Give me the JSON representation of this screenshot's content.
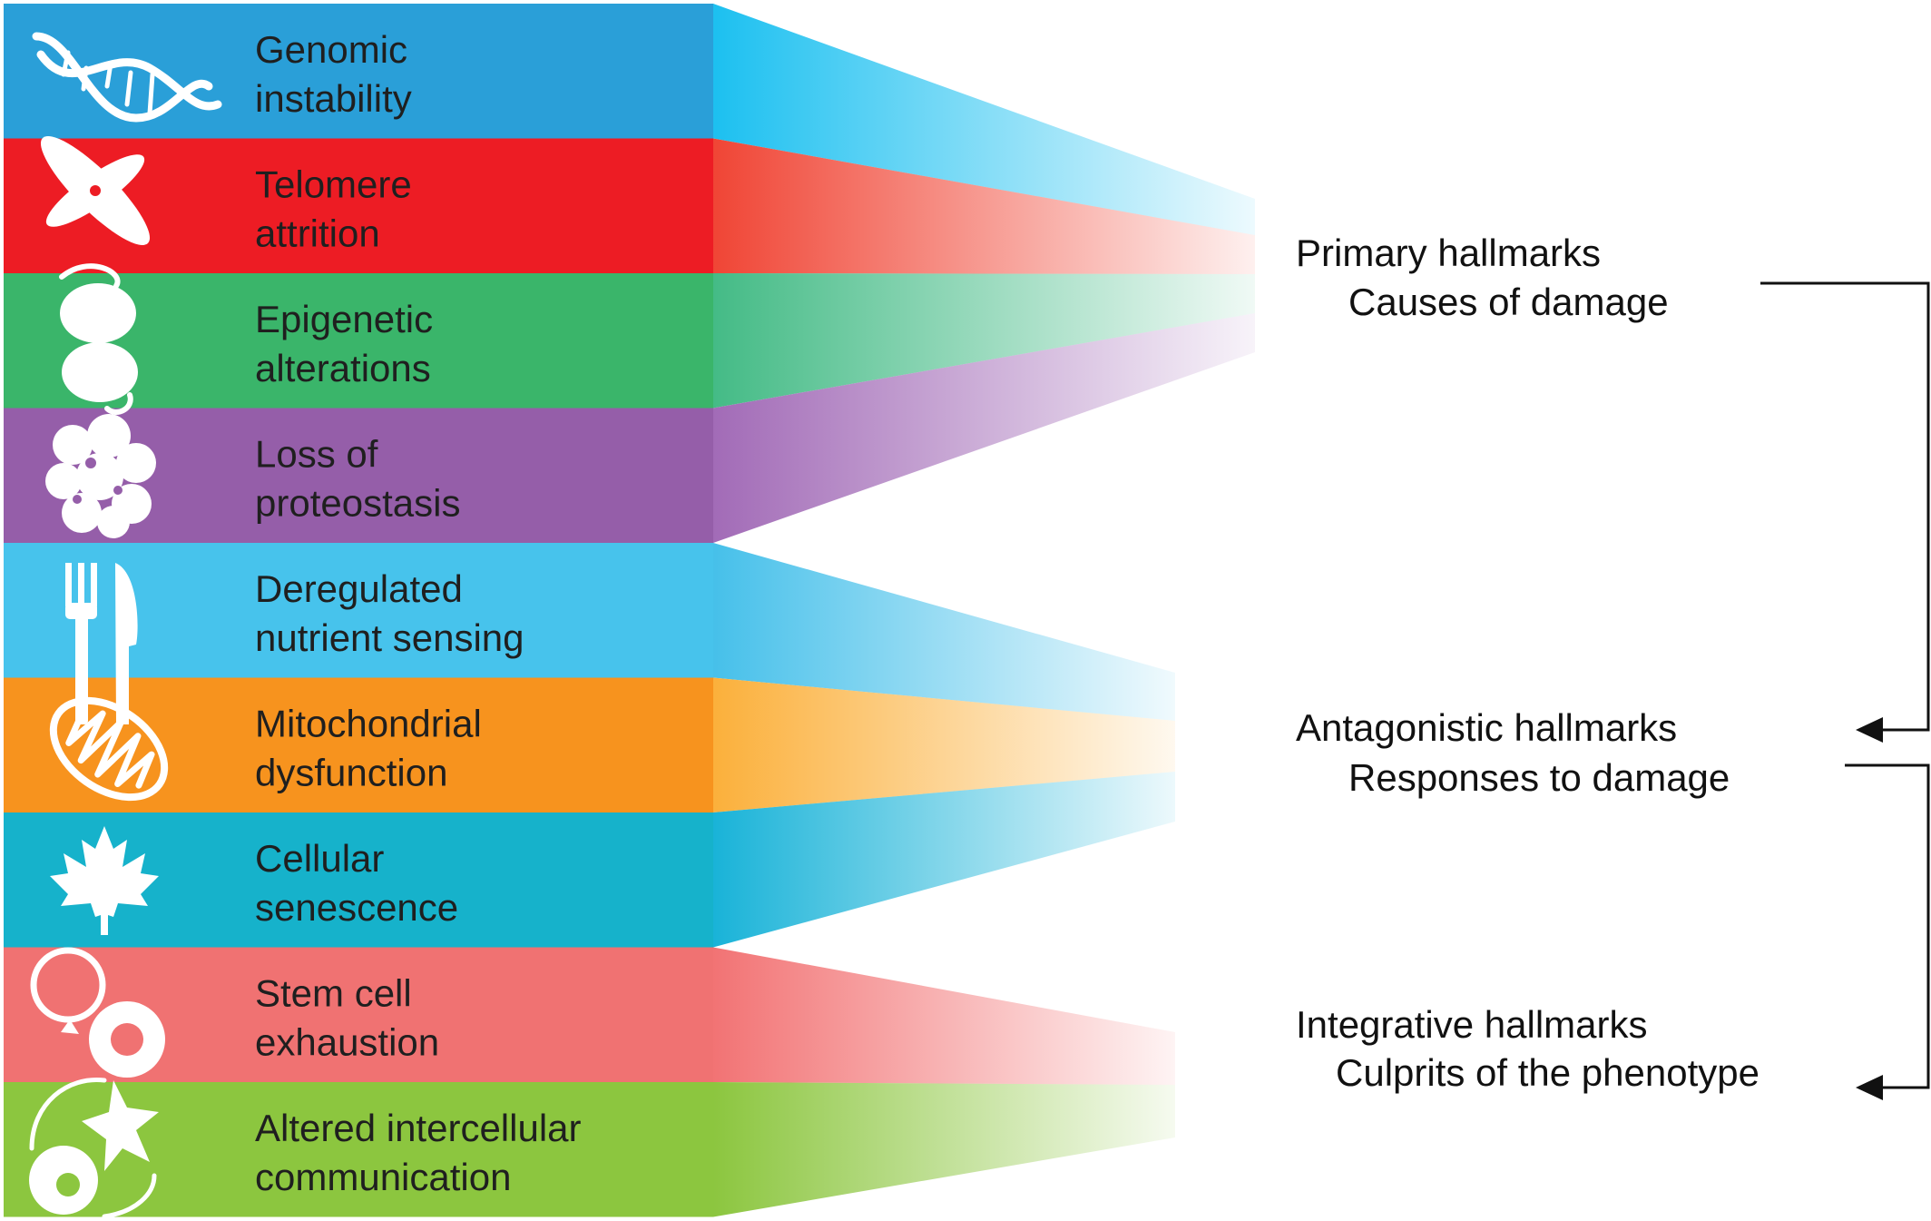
{
  "hallmarks": [
    {
      "lines": [
        "Genomic",
        "instability"
      ],
      "color": "#2a9fd8",
      "icon": "dna-icon"
    },
    {
      "lines": [
        "Telomere",
        "attrition"
      ],
      "color": "#ed1c24",
      "icon": "chromosome-icon"
    },
    {
      "lines": [
        "Epigenetic",
        "alterations"
      ],
      "color": "#3ab56a",
      "icon": "nucleosome-icon"
    },
    {
      "lines": [
        "Loss of",
        "proteostasis"
      ],
      "color": "#955ea9",
      "icon": "protein-icon"
    },
    {
      "lines": [
        "Deregulated",
        "nutrient sensing"
      ],
      "color": "#47c3ec",
      "icon": "fork-knife-icon"
    },
    {
      "lines": [
        "Mitochondrial",
        "dysfunction"
      ],
      "color": "#f7931e",
      "icon": "mitochondrion-icon"
    },
    {
      "lines": [
        "Cellular",
        "senescence"
      ],
      "color": "#16b2cb",
      "icon": "maple-leaf-icon"
    },
    {
      "lines": [
        "Stem cell",
        "exhaustion"
      ],
      "color": "#f07272",
      "icon": "stem-cell-icon"
    },
    {
      "lines": [
        "Altered intercellular",
        "communication"
      ],
      "color": "#8cc63f",
      "icon": "cell-communication-icon"
    }
  ],
  "groups": {
    "primary": {
      "title": "Primary hallmarks",
      "subtitle": "Causes of damage"
    },
    "antagonistic": {
      "title": "Antagonistic hallmarks",
      "subtitle": "Responses to damage"
    },
    "integrative": {
      "title": "Integrative hallmarks",
      "subtitle": "Culprits of the phenotype"
    }
  }
}
